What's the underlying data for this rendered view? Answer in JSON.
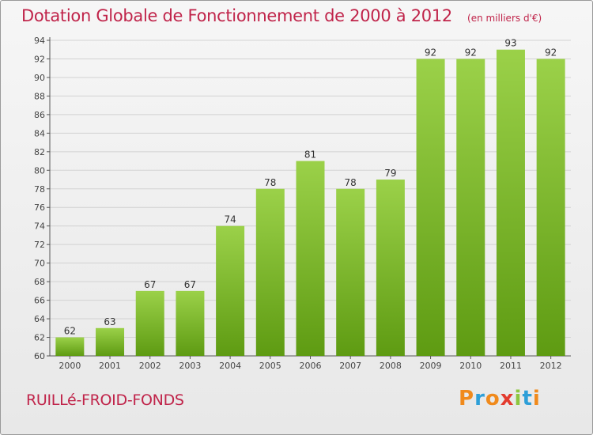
{
  "header": {
    "title": "Dotation Globale de Fonctionnement de 2000 à 2012",
    "unit": "(en milliers d'€)"
  },
  "footer": {
    "place": "RUILLé-FROID-FONDS",
    "logo": "Proxiti"
  },
  "colors": {
    "bar_light": "#9bd149",
    "bar_dark": "#5e9b12",
    "title": "#c0244a",
    "grid": "#d2d2d2",
    "logo_letters": [
      "#f08a1c",
      "#2e9fd8",
      "#f08a1c",
      "#e33b2e",
      "#8dc63f",
      "#2e9fd8",
      "#f08a1c"
    ]
  },
  "chart_data": {
    "type": "bar",
    "title": "Dotation Globale de Fonctionnement de 2000 à 2012",
    "categories": [
      "2000",
      "2001",
      "2002",
      "2003",
      "2004",
      "2005",
      "2006",
      "2007",
      "2008",
      "2009",
      "2010",
      "2011",
      "2012"
    ],
    "values": [
      62,
      63,
      67,
      67,
      74,
      78,
      81,
      78,
      79,
      92,
      92,
      93,
      92
    ],
    "ylim": [
      60,
      94
    ],
    "yticks": [
      60,
      62,
      64,
      66,
      68,
      70,
      72,
      74,
      76,
      78,
      80,
      82,
      84,
      86,
      88,
      90,
      92,
      94
    ],
    "grid": true,
    "legend": "none"
  }
}
